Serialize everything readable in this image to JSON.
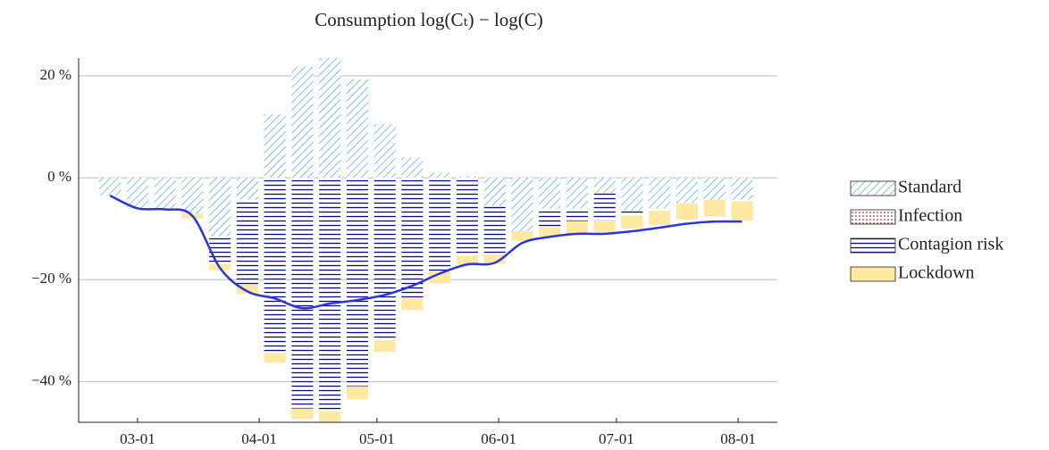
{
  "chart_data": {
    "type": "stacked-bar-line",
    "title": "Consumption log(Cₜ) − log(C)",
    "x": [
      "02-23",
      "03-01",
      "03-08",
      "03-15",
      "03-22",
      "03-29",
      "04-05",
      "04-12",
      "04-19",
      "04-26",
      "05-03",
      "05-10",
      "05-17",
      "05-24",
      "05-31",
      "06-07",
      "06-14",
      "06-21",
      "06-28",
      "07-05",
      "07-12",
      "07-19",
      "07-26",
      "08-02"
    ],
    "series": [
      {
        "name": "Standard",
        "color": "#3a9ad9",
        "pattern": "hatch",
        "values": [
          -3.5,
          -6,
          -6,
          -7,
          -11.5,
          -4.3,
          12.5,
          21.8,
          23.5,
          19.3,
          10.5,
          4,
          1,
          0.3,
          -5.5,
          -10.5,
          -6,
          -6,
          -3,
          -6.5,
          -6,
          -5,
          -4.3,
          -4.3
        ]
      },
      {
        "name": "Infection",
        "color": "#e0202a",
        "pattern": "dots",
        "values": [
          0,
          0,
          0,
          0,
          0,
          0,
          0,
          0,
          0,
          0,
          0,
          0,
          0,
          0,
          0,
          0,
          0,
          0,
          0,
          0,
          0,
          0,
          0,
          0
        ]
      },
      {
        "name": "Contagion risk",
        "color": "#0a0a8a",
        "pattern": "hlines",
        "values": [
          0,
          0,
          0,
          0,
          -5.4,
          -16.7,
          -34.4,
          -45.3,
          -45.8,
          -40.9,
          -31.9,
          -23.5,
          -18.4,
          -15.3,
          -9.5,
          0,
          -3.7,
          -2.5,
          -5.4,
          -0.9,
          -0.5,
          0,
          0,
          -0.3
        ]
      },
      {
        "name": "Lockdown",
        "color": "#fde9a2",
        "pattern": "solid",
        "values": [
          0,
          0,
          0,
          -1,
          -1.2,
          -1.8,
          -1.9,
          -2.1,
          -2.1,
          -2.6,
          -2.3,
          -2.5,
          -2.3,
          -1.8,
          -1.9,
          -1.9,
          -1.8,
          -2.5,
          -2.3,
          -2.6,
          -2.8,
          -3.2,
          -3.3,
          -3.8
        ]
      }
    ],
    "line": {
      "color": "#2b35d8",
      "x": [
        "02-23",
        "03-01",
        "03-08",
        "03-15",
        "03-22",
        "03-29",
        "04-05",
        "04-12",
        "04-19",
        "04-26",
        "05-03",
        "05-10",
        "05-17",
        "05-24",
        "05-31",
        "06-07",
        "06-14",
        "06-21",
        "06-28",
        "07-05",
        "07-12",
        "07-19",
        "07-26",
        "08-02"
      ],
      "values": [
        -3.5,
        -6,
        -6.2,
        -7.5,
        -17.7,
        -22.3,
        -23.7,
        -25.6,
        -24.7,
        -24,
        -23,
        -21.2,
        -18.8,
        -17,
        -16.7,
        -12.8,
        -11.6,
        -11,
        -11,
        -10.5,
        -9.8,
        -9,
        -8.6,
        -8.6
      ]
    },
    "xlim": [
      "02-15",
      "08-11"
    ],
    "xticks": [
      "03-01",
      "04-01",
      "05-01",
      "06-01",
      "07-01",
      "08-01"
    ],
    "ylim": [
      -48,
      23.5
    ],
    "yticks": [
      {
        "value": -40,
        "label": "−40 %"
      },
      {
        "value": -20,
        "label": "−20 %"
      },
      {
        "value": 0,
        "label": "0 %"
      },
      {
        "value": 20,
        "label": "20 %"
      }
    ],
    "grid": true,
    "legend": "right"
  }
}
